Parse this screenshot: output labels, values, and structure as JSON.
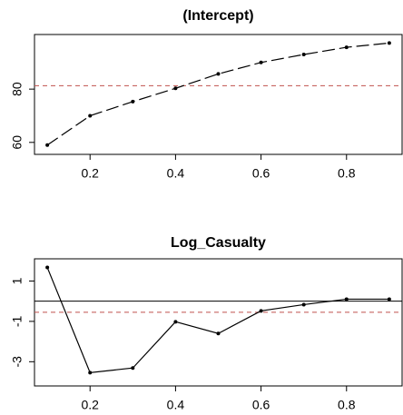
{
  "chart_data": [
    {
      "type": "line",
      "title": "(Intercept)",
      "x": [
        0.1,
        0.2,
        0.3,
        0.4,
        0.5,
        0.6,
        0.7,
        0.8,
        0.9
      ],
      "series": [
        {
          "color": "#000000",
          "dash": "long",
          "values": [
            59,
            70,
            75.3,
            80.3,
            85.7,
            90,
            93,
            95.7,
            97.3
          ]
        }
      ],
      "hlines": [
        {
          "value": 81.3,
          "color": "#c0504d",
          "dash": "dashed"
        }
      ],
      "xlim": [
        0.07,
        0.93
      ],
      "xticks": [
        0.2,
        0.4,
        0.6,
        0.8
      ],
      "ylim": [
        55.5,
        100.5
      ],
      "yticks": [
        60,
        80
      ]
    },
    {
      "type": "line",
      "title": "Log_Casualty",
      "x": [
        0.1,
        0.2,
        0.3,
        0.4,
        0.5,
        0.6,
        0.7,
        0.8,
        0.9
      ],
      "series": [
        {
          "color": "#000000",
          "dash": "solid",
          "values": [
            1.67,
            -3.54,
            -3.31,
            -1.02,
            -1.6,
            -0.48,
            -0.17,
            0.1,
            0.1
          ]
        }
      ],
      "hlines": [
        {
          "value": 0,
          "color": "#000000",
          "dash": "solid"
        },
        {
          "value": -0.55,
          "color": "#c0504d",
          "dash": "dashed"
        }
      ],
      "xlim": [
        0.07,
        0.93
      ],
      "xticks": [
        0.2,
        0.4,
        0.6,
        0.8
      ],
      "ylim": [
        -4.2,
        2.1
      ],
      "yticks": [
        1,
        -1,
        -3
      ]
    }
  ]
}
